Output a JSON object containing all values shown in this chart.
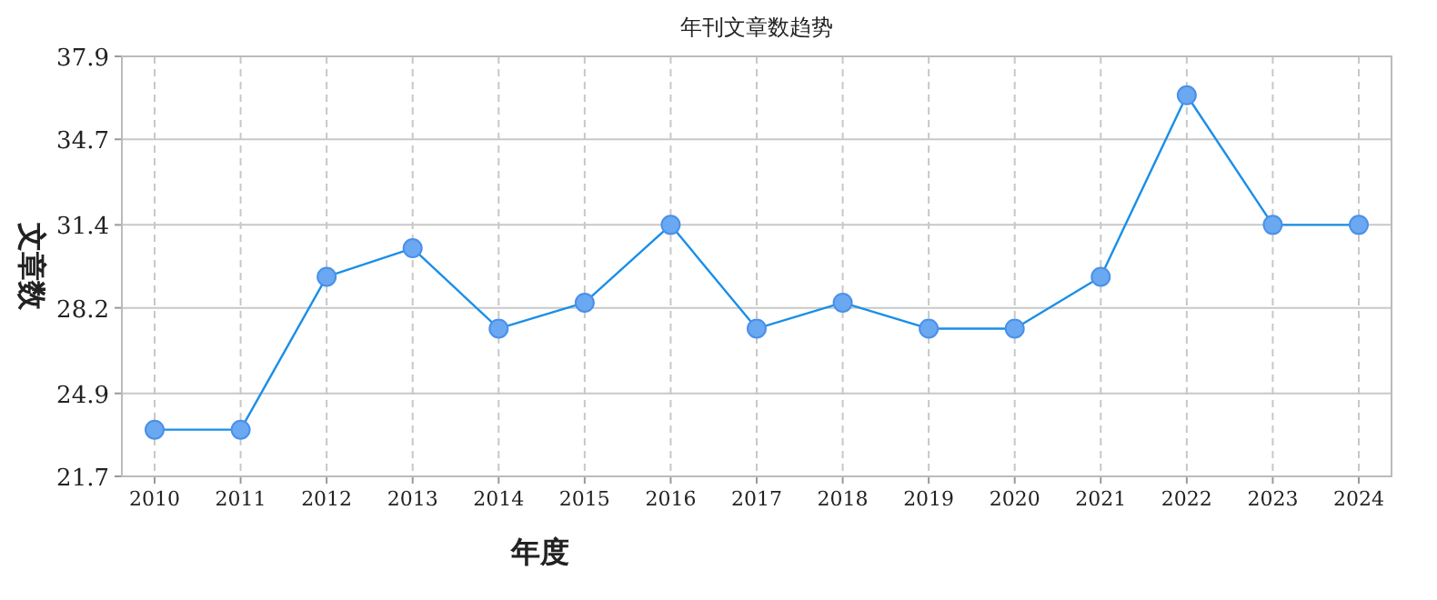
{
  "chart_data": {
    "type": "line",
    "title": "年刊文章数趋势",
    "xlabel": "年度",
    "ylabel": "文章数",
    "categories": [
      "2010",
      "2011",
      "2012",
      "2013",
      "2014",
      "2015",
      "2016",
      "2017",
      "2018",
      "2019",
      "2020",
      "2021",
      "2022",
      "2023",
      "2024"
    ],
    "series": [
      {
        "color": "#1a8fe8",
        "values": [
          23.5,
          23.5,
          29.4,
          30.5,
          27.4,
          28.4,
          31.4,
          27.4,
          28.4,
          27.4,
          27.4,
          29.4,
          36.4,
          31.4,
          31.4
        ]
      }
    ],
    "ylim": [
      21.7,
      37.9
    ],
    "yticks": [
      21.7,
      24.9,
      28.2,
      31.4,
      34.7,
      37.9
    ],
    "grid": true,
    "marker": "circle",
    "line_style": "solid"
  }
}
